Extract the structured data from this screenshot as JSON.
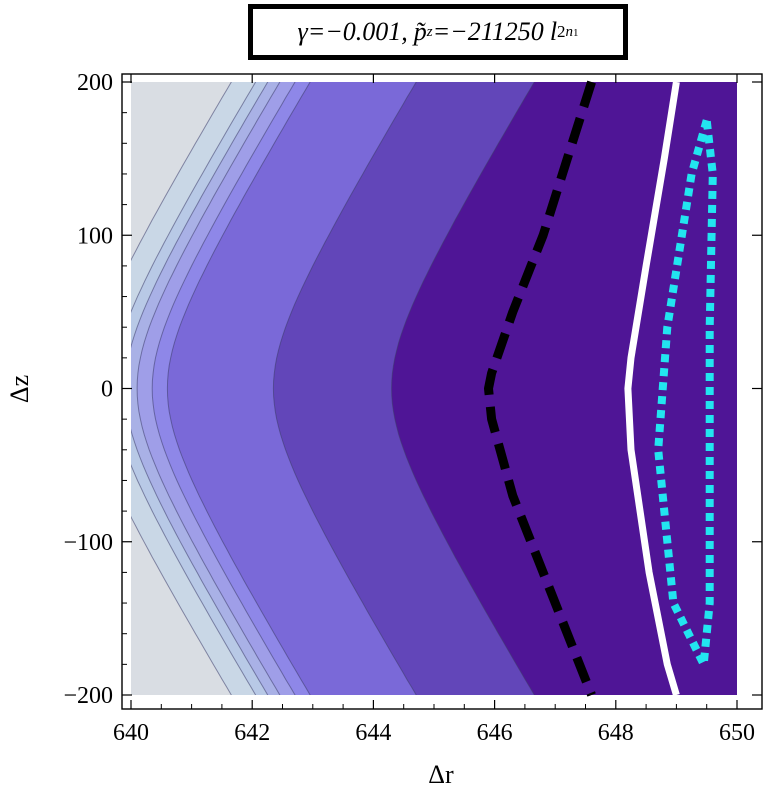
{
  "title": {
    "gamma_symbol": "γ",
    "gamma_value": "=−0.001,",
    "p_symbol": "p̃",
    "p_sub": "z",
    "p_value": "=−211250",
    "l_symbol": "l",
    "l_sup": "2",
    "l_sub": "n",
    "l_sub2": "1"
  },
  "chart_data": {
    "type": "contour",
    "xlabel": "Δr",
    "ylabel": "Δz",
    "xlim": [
      640,
      650
    ],
    "ylim": [
      -200,
      200
    ],
    "x_ticks": [
      640,
      642,
      644,
      646,
      648,
      650
    ],
    "x_tick_labels": [
      "640",
      "642",
      "644",
      "646",
      "648",
      "650"
    ],
    "y_ticks": [
      -200,
      -100,
      0,
      100,
      200
    ],
    "y_tick_labels": [
      "−200",
      "−100",
      "0",
      "100",
      "200"
    ],
    "fill_colors": [
      "#f2e6d6",
      "#d9dde3",
      "#c9d7e6",
      "#b8c9e6",
      "#a9b1e6",
      "#9f9ee8",
      "#8e87e8",
      "#7a69d8",
      "#6246b9",
      "#4f1596"
    ],
    "curves": [
      {
        "name": "black-dashed",
        "color": "#000000",
        "style": "dashed",
        "points": [
          [
            647.6,
            200
          ],
          [
            647.2,
            150
          ],
          [
            646.8,
            100
          ],
          [
            646.3,
            50
          ],
          [
            645.95,
            10
          ],
          [
            645.9,
            0
          ],
          [
            645.95,
            -20
          ],
          [
            646.3,
            -70
          ],
          [
            646.8,
            -120
          ],
          [
            647.3,
            -170
          ],
          [
            647.6,
            -200
          ]
        ]
      },
      {
        "name": "white-solid",
        "color": "#ffffff",
        "style": "solid",
        "points": [
          [
            649.0,
            200
          ],
          [
            648.8,
            150
          ],
          [
            648.5,
            80
          ],
          [
            648.25,
            20
          ],
          [
            648.2,
            0
          ],
          [
            648.25,
            -40
          ],
          [
            648.55,
            -120
          ],
          [
            648.85,
            -180
          ],
          [
            649.0,
            -200
          ]
        ]
      },
      {
        "name": "cyan-dotted",
        "color": "#22e5f0",
        "style": "dotted",
        "points": [
          [
            649.5,
            175
          ],
          [
            649.25,
            140
          ],
          [
            648.85,
            40
          ],
          [
            648.7,
            -40
          ],
          [
            648.95,
            -140
          ],
          [
            649.45,
            -180
          ],
          [
            649.55,
            -140
          ],
          [
            649.55,
            40
          ],
          [
            649.6,
            140
          ],
          [
            649.5,
            175
          ]
        ]
      }
    ]
  }
}
